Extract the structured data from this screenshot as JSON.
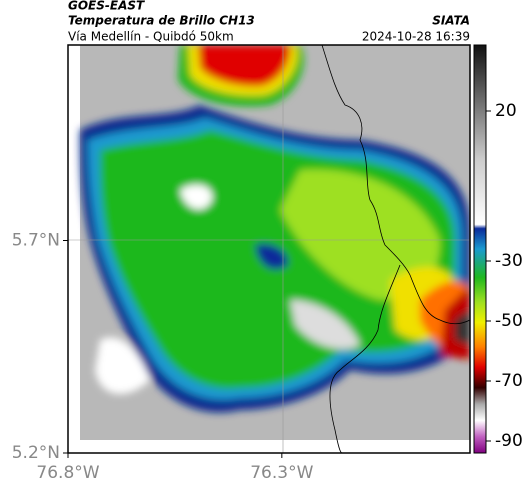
{
  "header": {
    "title": "GOES-EAST",
    "subtitle": "Temperatura de Brillo CH13",
    "region": "Vía Medellín - Quibdó 50km",
    "source": "SIATA",
    "datetime": "2024-10-28 16:39"
  },
  "map": {
    "xlim": [
      -76.8,
      -75.86
    ],
    "ylim": [
      5.2,
      6.16
    ],
    "xticks": [
      {
        "value": -76.8,
        "label": "76.8°W"
      },
      {
        "value": -76.3,
        "label": "76.3°W"
      }
    ],
    "yticks": [
      {
        "value": 5.2,
        "label": "5.2°N"
      },
      {
        "value": 5.7,
        "label": "5.7°N"
      }
    ]
  },
  "colorbar": {
    "lim": [
      42,
      -94
    ],
    "ticks": [
      20,
      -30,
      -50,
      -70,
      -90
    ]
  }
}
